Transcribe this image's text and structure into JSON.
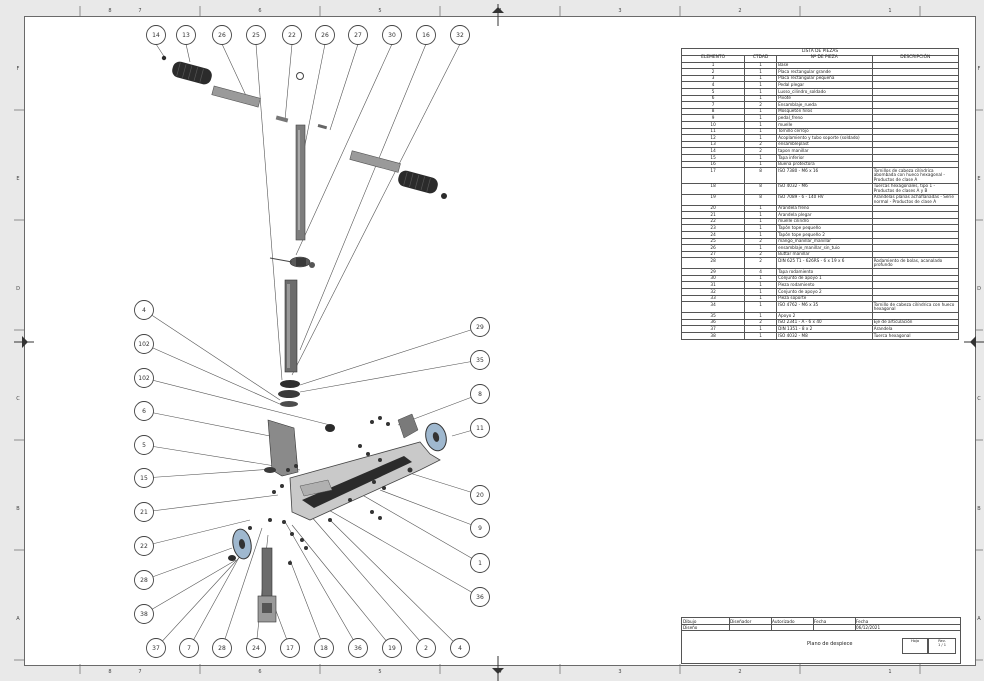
{
  "bom": {
    "title": "LISTA DE PIEZAS",
    "headers": [
      "ELEMENTO",
      "CTDAD",
      "Nº DE PIEZA",
      "DESCRIPCIÓN"
    ],
    "rows": [
      {
        "el": "1",
        "qty": "1",
        "part": "Base",
        "desc": ""
      },
      {
        "el": "2",
        "qty": "1",
        "part": "Placa rectangular grande",
        "desc": ""
      },
      {
        "el": "3",
        "qty": "1",
        "part": "Placa rectangular pequeña",
        "desc": ""
      },
      {
        "el": "4",
        "qty": "1",
        "part": "Pedal plegar",
        "desc": ""
      },
      {
        "el": "5",
        "qty": "1",
        "part": "Lusso_cilindro_soldado",
        "desc": ""
      },
      {
        "el": "6",
        "qty": "1",
        "part": "Pivote",
        "desc": ""
      },
      {
        "el": "7",
        "qty": "2",
        "part": "Ensamblaje_rueda",
        "desc": ""
      },
      {
        "el": "8",
        "qty": "1",
        "part": "Mosquetón hilos",
        "desc": ""
      },
      {
        "el": "9",
        "qty": "1",
        "part": "pedal_freno",
        "desc": ""
      },
      {
        "el": "10",
        "qty": "1",
        "part": "muelle",
        "desc": ""
      },
      {
        "el": "11",
        "qty": "1",
        "part": "Tornillo cerrojo",
        "desc": ""
      },
      {
        "el": "12",
        "qty": "1",
        "part": "Acoplamiento y tubo soporte (soldado)",
        "desc": ""
      },
      {
        "el": "13",
        "qty": "2",
        "part": "ensambleplast",
        "desc": ""
      },
      {
        "el": "14",
        "qty": "2",
        "part": "tapon manillar",
        "desc": ""
      },
      {
        "el": "15",
        "qty": "1",
        "part": "Tapa inferior",
        "desc": ""
      },
      {
        "el": "16",
        "qty": "1",
        "part": "Buena protectora",
        "desc": ""
      },
      {
        "el": "17",
        "qty": "8",
        "part": "ISO 7380 - M6 x 16",
        "desc": "Tornillos de cabeza cilíndrica abombada con hueco hexagonal - Productos de clase A"
      },
      {
        "el": "18",
        "qty": "8",
        "part": "ISO 4032 - M6",
        "desc": "Tuercas hexagonales, tipo 1 - Productos de clases A y B"
      },
      {
        "el": "19",
        "qty": "8",
        "part": "ISO 7089 - 6 - 140 HV",
        "desc": "Arandelas planas achaflanadas - Serie normal - Productos de clase A"
      },
      {
        "el": "20",
        "qty": "1",
        "part": "Arandela freno",
        "desc": ""
      },
      {
        "el": "21",
        "qty": "1",
        "part": "Arandela plegar",
        "desc": ""
      },
      {
        "el": "22",
        "qty": "1",
        "part": "muelle cilindro",
        "desc": ""
      },
      {
        "el": "23",
        "qty": "1",
        "part": "Tapón tope pequeño",
        "desc": ""
      },
      {
        "el": "24",
        "qty": "1",
        "part": "Tapón tope pequeño 2",
        "desc": ""
      },
      {
        "el": "25",
        "qty": "2",
        "part": "mango_manillar_manillar",
        "desc": ""
      },
      {
        "el": "26",
        "qty": "1",
        "part": "ensamblaje_manillar_sin_tuio",
        "desc": ""
      },
      {
        "el": "27",
        "qty": "2",
        "part": "Buttar manillar",
        "desc": ""
      },
      {
        "el": "28",
        "qty": "2",
        "part": "DIN 625 T1 - 626RS - 6 x 19 x 6",
        "desc": "Rodamiento de bolas, acanalado profundo"
      },
      {
        "el": "29",
        "qty": "4",
        "part": "Tapa rodamiento",
        "desc": ""
      },
      {
        "el": "30",
        "qty": "1",
        "part": "Conjunto de apoyo 1",
        "desc": ""
      },
      {
        "el": "31",
        "qty": "1",
        "part": "Pieza rodamiento",
        "desc": ""
      },
      {
        "el": "32",
        "qty": "1",
        "part": "Conjunto de apoyo 2",
        "desc": ""
      },
      {
        "el": "33",
        "qty": "1",
        "part": "Pieza soporte",
        "desc": ""
      },
      {
        "el": "34",
        "qty": "1",
        "part": "ISO 4762 - M6 x 35",
        "desc": "Tornillo de cabeza cilíndrica con hueco hexagonal"
      },
      {
        "el": "35",
        "qty": "1",
        "part": "Apoyo 2",
        "desc": ""
      },
      {
        "el": "36",
        "qty": "2",
        "part": "ISO 2341 - A - 6 x 40",
        "desc": "Eje de articulación"
      },
      {
        "el": "37",
        "qty": "1",
        "part": "DIN 1351 - 8 x 2",
        "desc": "Arandela"
      },
      {
        "el": "38",
        "qty": "1",
        "part": "ISO 4032 - M8",
        "desc": "Tuerca hexagonal"
      }
    ]
  },
  "title_block": {
    "r1": [
      "Dibujo",
      "Diseñador",
      "Autorizado",
      "Fecha",
      "Fecha"
    ],
    "r2": [
      "Diseño",
      "",
      "",
      "",
      "06/12/2021"
    ],
    "drawing_title": "Plano de despiece",
    "sheet_label": "Hoja",
    "sheet_value": "1 / 1",
    "rev_label": "Rev."
  },
  "balloons": {
    "top": [
      "14",
      "13",
      "26",
      "25",
      "22",
      "26",
      "27",
      "30",
      "16",
      "32"
    ],
    "left": [
      "4",
      "102",
      "102",
      "6",
      "5",
      "15",
      "21",
      "22",
      "28",
      "38"
    ],
    "bottom": [
      "37",
      "7",
      "28",
      "24",
      "17",
      "18",
      "36",
      "19",
      "2",
      "4"
    ],
    "right": [
      "29",
      "35",
      "8",
      "11",
      "20",
      "9",
      "1",
      "36"
    ],
    "grip": "13"
  },
  "zones": {
    "cols": [
      "8",
      "7",
      "6",
      "5",
      "4",
      "3",
      "2",
      "1"
    ],
    "rows": [
      "F",
      "E",
      "D",
      "C",
      "B",
      "A"
    ]
  },
  "colors": {
    "frame": "#6a6a6a",
    "line": "#444444",
    "part_dark": "#2b2b2b",
    "part_mid": "#6f6f6f",
    "part_light": "#b9b9b9",
    "wheel_blue": "#9fb8cf"
  }
}
